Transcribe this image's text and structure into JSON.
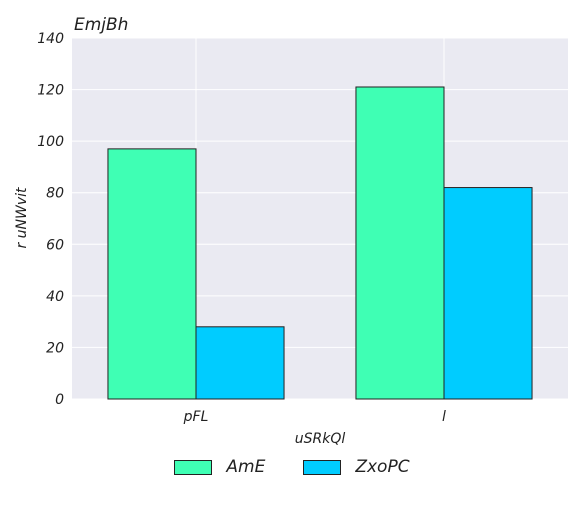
{
  "chart_data": {
    "type": "bar",
    "title": "EmjBh",
    "xlabel": "uSRkQl",
    "ylabel": "r uNWvit",
    "categories": [
      "pFL",
      "l"
    ],
    "series": [
      {
        "name": "AmE",
        "values": [
          97,
          121
        ],
        "color": "#3fffb4"
      },
      {
        "name": "ZxoPC",
        "values": [
          28,
          82
        ],
        "color": "#00ccff"
      }
    ],
    "ylim": [
      0,
      140
    ],
    "yticks": [
      "0",
      "20",
      "40",
      "60",
      "80",
      "100",
      "120",
      "140"
    ],
    "grid": true,
    "legend_position": "bottom-center"
  }
}
